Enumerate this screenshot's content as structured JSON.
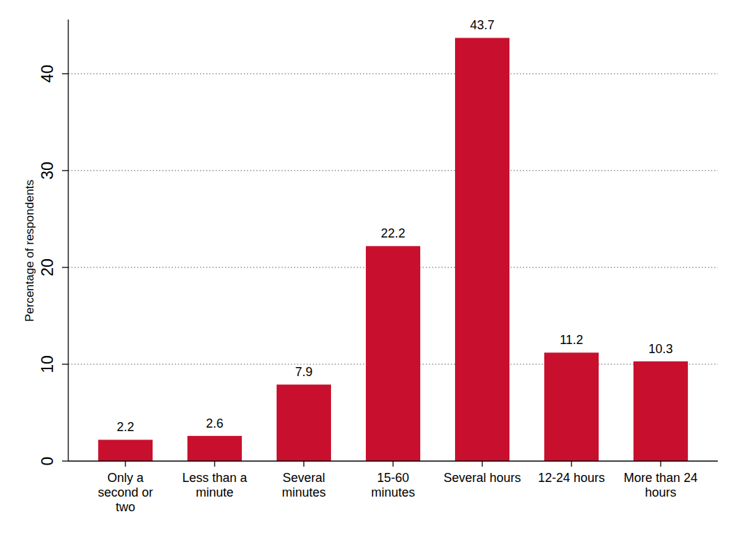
{
  "chart_data": {
    "type": "bar",
    "y_label": "Percentage of respondents",
    "categories": [
      "Only a second or two",
      "Less than a minute",
      "Several minutes",
      "15-60 minutes",
      "Several hours",
      "12-24 hours",
      "More than 24 hours"
    ],
    "values": [
      2.2,
      2.6,
      7.9,
      22.2,
      43.7,
      11.2,
      10.3
    ],
    "color": "#c8102e",
    "ylim": [
      0,
      45.6
    ],
    "yticks": [
      0,
      10,
      20,
      30,
      40
    ],
    "grid": true,
    "data_labels": true
  }
}
